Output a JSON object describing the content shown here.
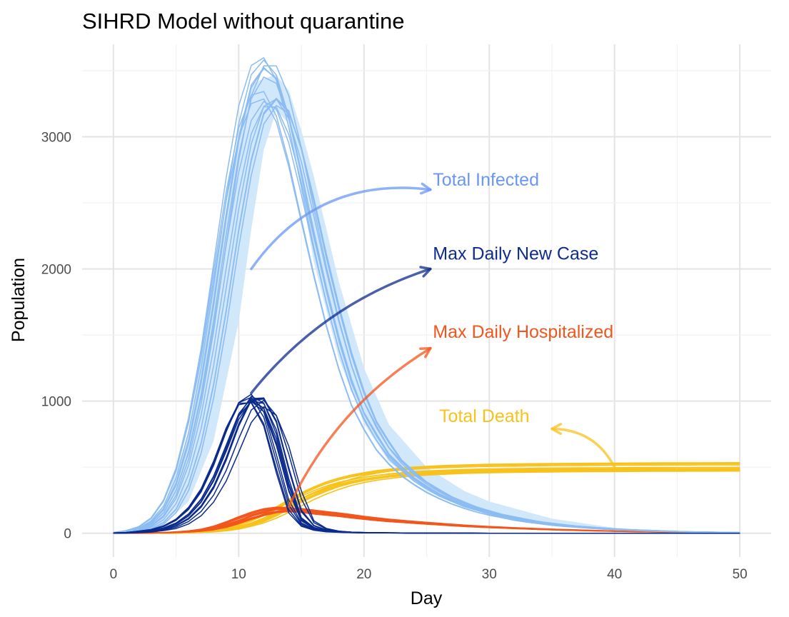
{
  "chart_data": {
    "type": "line",
    "title": "SIHRD Model without quarantine",
    "xlabel": "Day",
    "ylabel": "Population",
    "xlim": [
      -2.5,
      52.5
    ],
    "ylim": [
      -180,
      3700
    ],
    "x_ticks": [
      0,
      10,
      20,
      30,
      40,
      50
    ],
    "y_ticks": [
      0,
      1000,
      2000,
      3000
    ],
    "grid": true,
    "legend": "none",
    "colors": {
      "infected": "#8bbcf2",
      "infected_fill": "#cfe6fa",
      "new_case": "#0a2a8c",
      "hospitalized": "#f2561d",
      "death": "#f7c21b",
      "infected_label": "#6a97f5",
      "new_case_label": "#0d2c8c",
      "hosp_label": "#f2561d",
      "death_label": "#f7c21b"
    },
    "series_groups": {
      "infected": {
        "runs": 14,
        "template": [
          [
            0,
            0
          ],
          [
            1,
            8
          ],
          [
            2,
            25
          ],
          [
            3,
            60
          ],
          [
            4,
            140
          ],
          [
            5,
            300
          ],
          [
            6,
            580
          ],
          [
            7,
            1000
          ],
          [
            8,
            1550
          ],
          [
            9,
            2200
          ],
          [
            10,
            2800
          ],
          [
            11,
            3250
          ],
          [
            12,
            3430
          ],
          [
            13,
            3400
          ],
          [
            14,
            3150
          ],
          [
            15,
            2750
          ],
          [
            16,
            2300
          ],
          [
            17,
            1880
          ],
          [
            18,
            1500
          ],
          [
            19,
            1180
          ],
          [
            20,
            920
          ],
          [
            22,
            600
          ],
          [
            24,
            420
          ],
          [
            26,
            300
          ],
          [
            28,
            215
          ],
          [
            30,
            155
          ],
          [
            33,
            95
          ],
          [
            36,
            58
          ],
          [
            40,
            30
          ],
          [
            45,
            12
          ],
          [
            50,
            5
          ]
        ]
      },
      "new_case": {
        "runs": 14,
        "template": [
          [
            0,
            0
          ],
          [
            2,
            6
          ],
          [
            4,
            30
          ],
          [
            5,
            60
          ],
          [
            6,
            115
          ],
          [
            7,
            210
          ],
          [
            8,
            360
          ],
          [
            9,
            580
          ],
          [
            10,
            840
          ],
          [
            11,
            1020
          ],
          [
            12,
            1000
          ],
          [
            13,
            800
          ],
          [
            14,
            420
          ],
          [
            15,
            120
          ],
          [
            16,
            45
          ],
          [
            17,
            20
          ],
          [
            18,
            10
          ],
          [
            20,
            4
          ],
          [
            25,
            1
          ],
          [
            30,
            0
          ],
          [
            50,
            0
          ]
        ]
      },
      "hospitalized": {
        "runs": 14,
        "template": [
          [
            0,
            0
          ],
          [
            3,
            2
          ],
          [
            5,
            6
          ],
          [
            7,
            20
          ],
          [
            8,
            35
          ],
          [
            9,
            60
          ],
          [
            10,
            95
          ],
          [
            11,
            130
          ],
          [
            12,
            160
          ],
          [
            13,
            180
          ],
          [
            14,
            185
          ],
          [
            15,
            178
          ],
          [
            16,
            165
          ],
          [
            18,
            145
          ],
          [
            20,
            120
          ],
          [
            22,
            100
          ],
          [
            25,
            78
          ],
          [
            28,
            58
          ],
          [
            30,
            48
          ],
          [
            33,
            36
          ],
          [
            36,
            26
          ],
          [
            40,
            16
          ],
          [
            45,
            8
          ],
          [
            50,
            4
          ]
        ]
      },
      "death": {
        "runs": 14,
        "template": [
          [
            0,
            0
          ],
          [
            5,
            2
          ],
          [
            7,
            8
          ],
          [
            9,
            25
          ],
          [
            11,
            70
          ],
          [
            12,
            105
          ],
          [
            13,
            150
          ],
          [
            14,
            200
          ],
          [
            15,
            255
          ],
          [
            16,
            300
          ],
          [
            17,
            340
          ],
          [
            18,
            375
          ],
          [
            19,
            400
          ],
          [
            20,
            420
          ],
          [
            22,
            448
          ],
          [
            24,
            465
          ],
          [
            26,
            475
          ],
          [
            28,
            482
          ],
          [
            30,
            487
          ],
          [
            35,
            493
          ],
          [
            40,
            496
          ],
          [
            45,
            498
          ],
          [
            50,
            499
          ]
        ]
      },
      "infected_band": {
        "upper": [
          [
            0,
            0
          ],
          [
            2,
            40
          ],
          [
            4,
            200
          ],
          [
            6,
            750
          ],
          [
            8,
            1900
          ],
          [
            10,
            3000
          ],
          [
            11,
            3400
          ],
          [
            12,
            3440
          ],
          [
            13,
            3470
          ],
          [
            14,
            3350
          ],
          [
            15,
            3050
          ],
          [
            16,
            2700
          ],
          [
            18,
            1900
          ],
          [
            20,
            1250
          ],
          [
            22,
            820
          ],
          [
            25,
            500
          ],
          [
            28,
            320
          ],
          [
            30,
            240
          ],
          [
            35,
            110
          ],
          [
            40,
            40
          ],
          [
            45,
            15
          ],
          [
            50,
            6
          ]
        ],
        "lower": [
          [
            0,
            0
          ],
          [
            4,
            60
          ],
          [
            6,
            240
          ],
          [
            8,
            700
          ],
          [
            10,
            1600
          ],
          [
            11,
            2300
          ],
          [
            12,
            2900
          ],
          [
            13,
            3200
          ],
          [
            14,
            3100
          ],
          [
            15,
            2600
          ],
          [
            16,
            2050
          ],
          [
            18,
            1320
          ],
          [
            20,
            830
          ],
          [
            22,
            540
          ],
          [
            25,
            320
          ],
          [
            28,
            200
          ],
          [
            30,
            150
          ],
          [
            35,
            70
          ],
          [
            40,
            28
          ],
          [
            45,
            10
          ],
          [
            50,
            4
          ]
        ]
      }
    },
    "annotations": [
      {
        "text": "Total Infected",
        "pos": [
          25.5,
          2630
        ],
        "arrow_from": [
          11,
          2000
        ],
        "arrow_to": [
          25.3,
          2600
        ],
        "curvature": -0.3,
        "color_key": "infected_label"
      },
      {
        "text": "Max Daily New Case",
        "pos": [
          25.5,
          2070
        ],
        "arrow_from": [
          11,
          1060
        ],
        "arrow_to": [
          25.3,
          2000
        ],
        "curvature": -0.15,
        "color_key": "new_case_label"
      },
      {
        "text": "Max Daily Hospitalized",
        "pos": [
          25.5,
          1480
        ],
        "arrow_from": [
          14,
          200
        ],
        "arrow_to": [
          25.3,
          1400
        ],
        "curvature": -0.15,
        "color_key": "hosp_label"
      },
      {
        "text": "Total Death",
        "pos": [
          26,
          840
        ],
        "arrow_from": [
          40,
          500
        ],
        "arrow_to": [
          35,
          790
        ],
        "curvature": 0.3,
        "color_key": "death_label"
      }
    ]
  }
}
